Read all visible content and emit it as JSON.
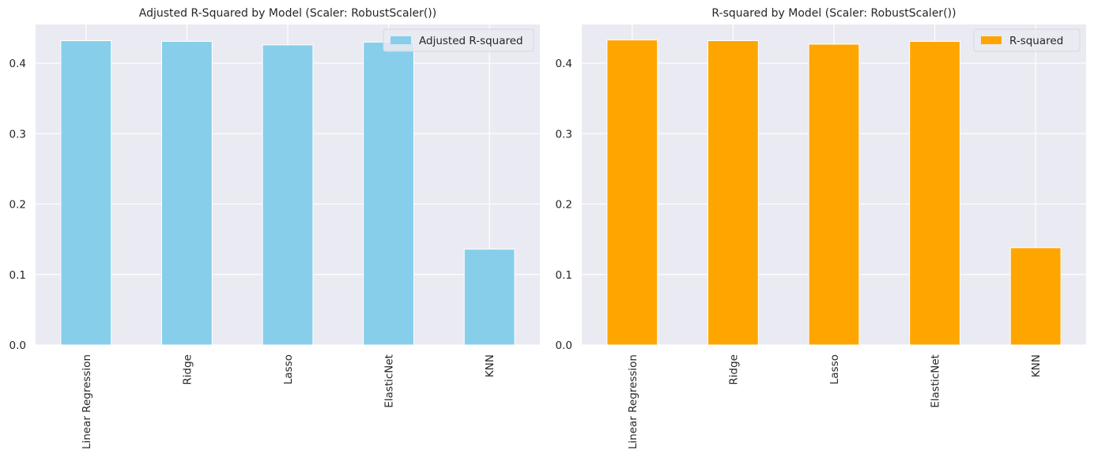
{
  "chart_data": [
    {
      "type": "bar",
      "title": "Adjusted R-Squared by Model (Scaler: RobustScaler())",
      "categories": [
        "Linear Regression",
        "Ridge",
        "Lasso",
        "ElasticNet",
        "KNN"
      ],
      "series": [
        {
          "name": "Adjusted R-squared",
          "values": [
            0.432,
            0.431,
            0.426,
            0.43,
            0.136
          ],
          "color": "#87CEEB"
        }
      ],
      "yticks": [
        "0.0",
        "0.1",
        "0.2",
        "0.3",
        "0.4"
      ],
      "ylim": [
        0,
        0.455
      ],
      "xlabel": "",
      "ylabel": "",
      "grid": true,
      "legend": "upper-right"
    },
    {
      "type": "bar",
      "title": "R-squared by Model (Scaler: RobustScaler())",
      "categories": [
        "Linear Regression",
        "Ridge",
        "Lasso",
        "ElasticNet",
        "KNN"
      ],
      "series": [
        {
          "name": "R-squared",
          "values": [
            0.433,
            0.432,
            0.427,
            0.431,
            0.138
          ],
          "color": "#FFA500"
        }
      ],
      "yticks": [
        "0.0",
        "0.1",
        "0.2",
        "0.3",
        "0.4"
      ],
      "ylim": [
        0,
        0.455
      ],
      "xlabel": "",
      "ylabel": "",
      "grid": true,
      "legend": "upper-right"
    }
  ]
}
